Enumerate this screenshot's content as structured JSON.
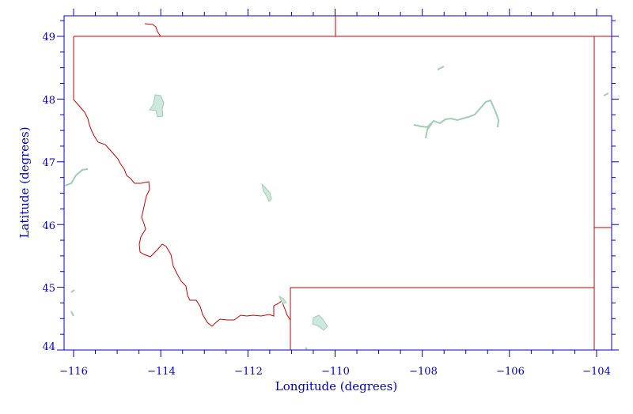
{
  "map": {
    "xlabel": "Longitude (degrees)",
    "ylabel": "Latitude (degrees)",
    "x_ticks": [
      "−116",
      "−114",
      "−112",
      "−110",
      "−108",
      "−106",
      "−104"
    ],
    "y_ticks": [
      "44",
      "45",
      "46",
      "47",
      "48",
      "49"
    ],
    "colors": {
      "axis": "#0000cc",
      "border": "#cc0000",
      "water": "#cde8dc",
      "water_edge": "#9fcfb0"
    }
  },
  "chart_data": {
    "type": "map",
    "region": "Montana",
    "xlabel": "Longitude (degrees)",
    "ylabel": "Latitude (degrees)",
    "xlim": [
      -116.3,
      -103.6
    ],
    "ylim": [
      44.0,
      49.0
    ],
    "x_ticks": [
      -116,
      -114,
      -112,
      -110,
      -108,
      -106,
      -104
    ],
    "y_ticks": [
      44,
      45,
      46,
      47,
      48,
      49
    ],
    "features": [
      "state border",
      "lakes / reservoirs"
    ]
  }
}
